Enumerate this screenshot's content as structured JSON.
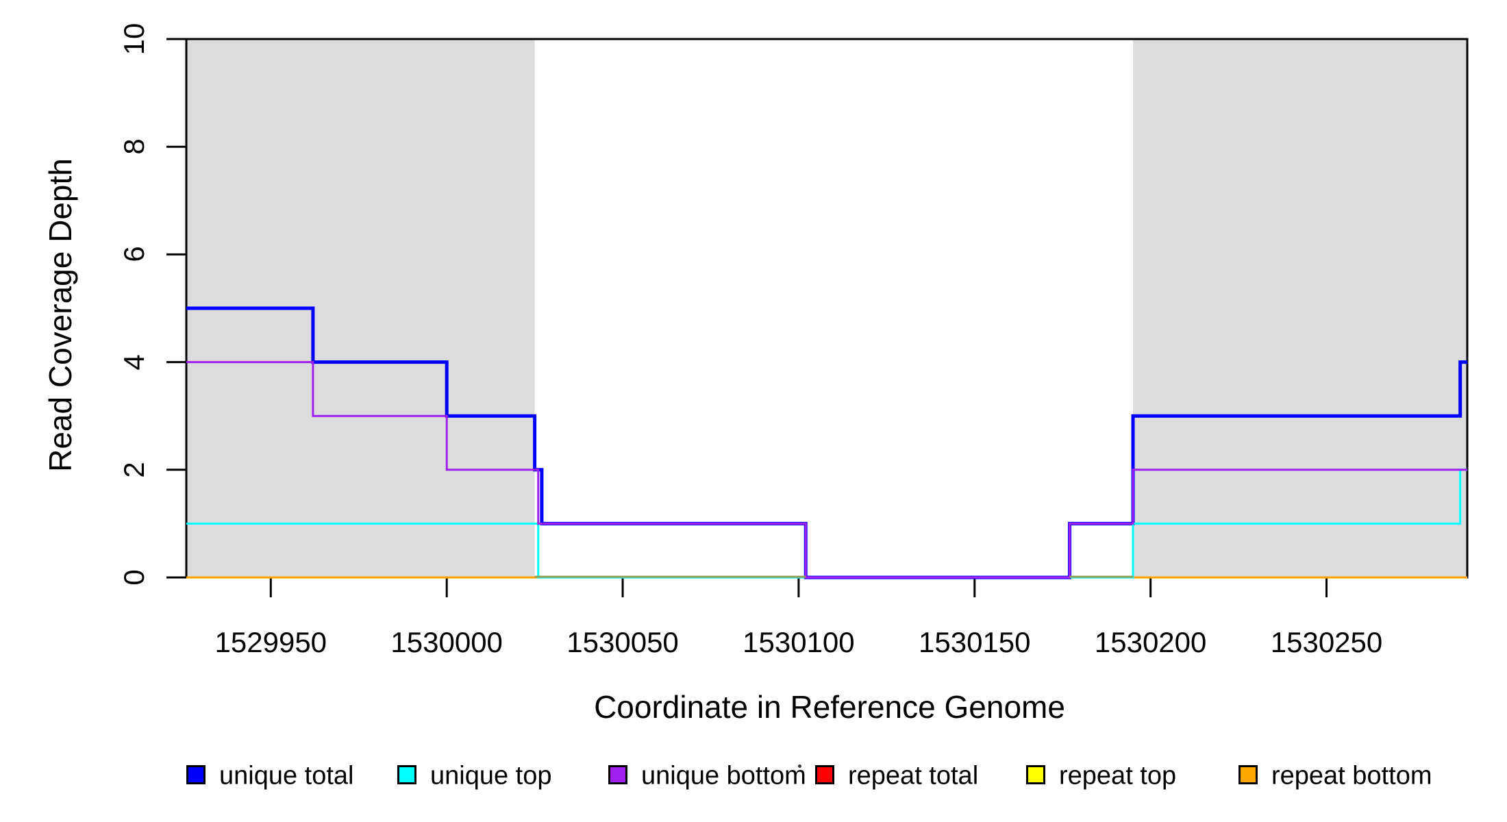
{
  "figure": {
    "background": "#ffffff",
    "box_color": "#000000",
    "shade_color": "#dcdcdc"
  },
  "chart_data": {
    "type": "line",
    "subtype": "step-coverage-plot",
    "title": "",
    "xlabel": "Coordinate in Reference Genome",
    "ylabel": "Read Coverage Depth",
    "xlim": [
      1529926,
      1530290
    ],
    "ylim": [
      0,
      10
    ],
    "x_ticks": [
      1529950,
      1530000,
      1530050,
      1530100,
      1530150,
      1530200,
      1530250
    ],
    "y_ticks": [
      0,
      2,
      4,
      6,
      8,
      10
    ],
    "grid": false,
    "legend_position": "bottom",
    "shaded_regions": [
      {
        "x0": 1529926,
        "x1": 1530025,
        "color": "#dcdcdc"
      },
      {
        "x0": 1530195,
        "x1": 1530290,
        "color": "#dcdcdc"
      }
    ],
    "series": [
      {
        "name": "repeat total",
        "color": "#ff0000",
        "width": 3,
        "steps": [
          [
            1529926,
            0
          ],
          [
            1530290,
            0
          ]
        ]
      },
      {
        "name": "repeat top",
        "color": "#ffff00",
        "width": 3,
        "steps": [
          [
            1529926,
            0
          ],
          [
            1530290,
            0
          ]
        ]
      },
      {
        "name": "repeat bottom",
        "color": "#ffa500",
        "width": 3,
        "steps": [
          [
            1529926,
            0
          ],
          [
            1530290,
            0
          ]
        ]
      },
      {
        "name": "unique total",
        "color": "#0000ff",
        "width": 5,
        "steps": [
          [
            1529926,
            5
          ],
          [
            1529962,
            4
          ],
          [
            1530000,
            3
          ],
          [
            1530025,
            2
          ],
          [
            1530027,
            1
          ],
          [
            1530102,
            0
          ],
          [
            1530177,
            1
          ],
          [
            1530195,
            3
          ],
          [
            1530288,
            4
          ],
          [
            1530290,
            4
          ]
        ]
      },
      {
        "name": "unique top",
        "color": "#00ffff",
        "width": 3,
        "steps": [
          [
            1529926,
            1
          ],
          [
            1530026,
            0
          ],
          [
            1530195,
            1
          ],
          [
            1530288,
            2
          ],
          [
            1530290,
            2
          ]
        ]
      },
      {
        "name": "unique bottom",
        "color": "#a020f0",
        "width": 3,
        "steps": [
          [
            1529926,
            4
          ],
          [
            1529962,
            3
          ],
          [
            1530000,
            2
          ],
          [
            1530026,
            1
          ],
          [
            1530102,
            0
          ],
          [
            1530177,
            1
          ],
          [
            1530195,
            2
          ],
          [
            1530290,
            2
          ]
        ]
      }
    ],
    "zero_overlap_segments": [
      {
        "from": 1530025,
        "to": 1530102,
        "color": "#8f9e54"
      },
      {
        "from": 1530177,
        "to": 1530195,
        "color": "#8f9e54"
      }
    ],
    "legend": [
      {
        "label": "unique total",
        "color": "#0000ff"
      },
      {
        "label": "unique top",
        "color": "#00ffff"
      },
      {
        "label": "unique bottom",
        "color": "#a020f0"
      },
      {
        "label": "repeat total",
        "color": "#ff0000"
      },
      {
        "label": "repeat top",
        "color": "#ffff00"
      },
      {
        "label": "repeat bottom",
        "color": "#ffa500"
      }
    ]
  }
}
